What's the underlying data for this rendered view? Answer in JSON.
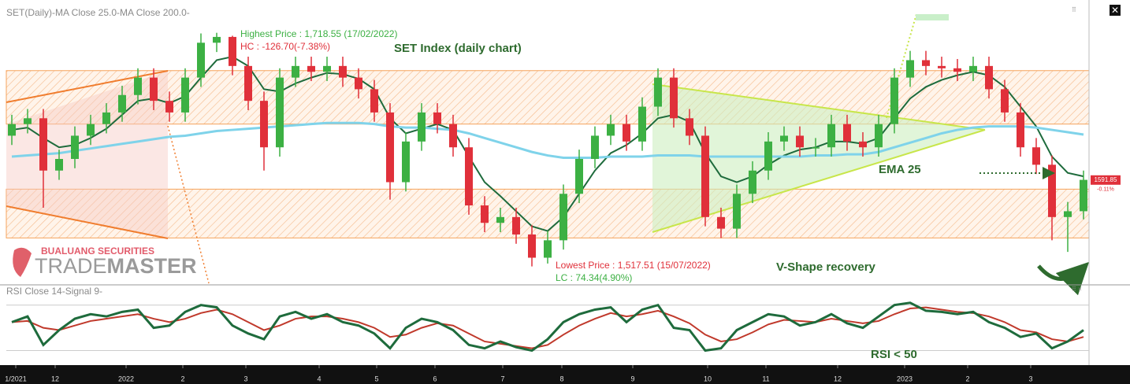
{
  "logo": {
    "company": "BUALUANG SECURITIES",
    "part1": "TRADE",
    "part2": "MASTER"
  },
  "chart_data": [
    {
      "type": "candlestick",
      "title": "SET Index (daily chart)",
      "header": "SET(Daily)-MA Close 25.0-MA Close 200.0-",
      "annotations": [
        "Highest Price : 1,718.55 (17/02/2022)",
        "HC : -126.70(-7.38%)",
        "EMA 25",
        "Lowest Price : 1,517.51 (15/07/2022)",
        "LC : 74.34(4.90%)",
        "V-Shape recovery"
      ],
      "ylim": [
        1740,
        1503
      ],
      "up_color": "#3cb043",
      "down_color": "#e0303a",
      "zones": [
        [
          1640,
          1686
        ],
        [
          1542,
          1584
        ]
      ],
      "zone_color": "#f5a35c",
      "open": [
        1630,
        1640,
        1645,
        1600,
        1610,
        1630,
        1640,
        1650,
        1665,
        1680,
        1660,
        1650,
        1680,
        1710,
        1715,
        1690,
        1660,
        1620,
        1680,
        1690,
        1685,
        1690,
        1680,
        1670,
        1650,
        1590,
        1625,
        1650,
        1640,
        1620,
        1570,
        1555,
        1560,
        1545,
        1525,
        1540,
        1580,
        1610,
        1630,
        1640,
        1625,
        1655,
        1680,
        1645,
        1630,
        1560,
        1550,
        1580,
        1600,
        1625,
        1630,
        1620,
        1620,
        1640,
        1625,
        1620,
        1640,
        1680,
        1695,
        1690,
        1688,
        1685,
        1690,
        1670,
        1650,
        1620,
        1605,
        1560,
        1565
      ],
      "high": [
        1648,
        1653,
        1653,
        1618,
        1638,
        1648,
        1658,
        1673,
        1688,
        1688,
        1668,
        1688,
        1718,
        1718.55,
        1716,
        1698,
        1668,
        1688,
        1698,
        1698,
        1698,
        1698,
        1688,
        1678,
        1658,
        1633,
        1658,
        1658,
        1648,
        1628,
        1578,
        1568,
        1568,
        1553,
        1548,
        1588,
        1618,
        1638,
        1648,
        1648,
        1663,
        1688,
        1688,
        1653,
        1638,
        1568,
        1588,
        1608,
        1633,
        1638,
        1638,
        1628,
        1648,
        1648,
        1633,
        1648,
        1688,
        1703,
        1703,
        1698,
        1696,
        1698,
        1698,
        1678,
        1658,
        1628,
        1613,
        1573,
        1600
      ],
      "low": [
        1622,
        1632,
        1568,
        1592,
        1602,
        1622,
        1632,
        1642,
        1657,
        1652,
        1642,
        1642,
        1672,
        1702,
        1682,
        1652,
        1600,
        1612,
        1672,
        1677,
        1677,
        1672,
        1662,
        1642,
        1575,
        1582,
        1617,
        1632,
        1612,
        1562,
        1547,
        1547,
        1537,
        1517.51,
        1520,
        1532,
        1572,
        1602,
        1622,
        1617,
        1617,
        1647,
        1637,
        1622,
        1552,
        1542,
        1542,
        1572,
        1592,
        1617,
        1612,
        1612,
        1612,
        1617,
        1612,
        1612,
        1632,
        1672,
        1682,
        1680,
        1677,
        1677,
        1662,
        1642,
        1612,
        1597,
        1540,
        1530,
        1558
      ],
      "close": [
        1640,
        1645,
        1600,
        1610,
        1630,
        1640,
        1650,
        1665,
        1680,
        1660,
        1650,
        1680,
        1710,
        1715,
        1690,
        1660,
        1620,
        1680,
        1690,
        1685,
        1690,
        1680,
        1670,
        1650,
        1590,
        1625,
        1650,
        1640,
        1620,
        1570,
        1555,
        1560,
        1545,
        1525,
        1540,
        1580,
        1610,
        1630,
        1640,
        1625,
        1655,
        1680,
        1645,
        1630,
        1560,
        1550,
        1580,
        1600,
        1625,
        1630,
        1620,
        1620,
        1640,
        1625,
        1620,
        1640,
        1680,
        1695,
        1690,
        1688,
        1685,
        1690,
        1670,
        1650,
        1620,
        1605,
        1560,
        1565,
        1592
      ],
      "ma_lines": [
        {
          "color": "#1e6b3c",
          "values": [
            1635,
            1637,
            1628,
            1620,
            1622,
            1628,
            1636,
            1648,
            1660,
            1662,
            1658,
            1664,
            1680,
            1695,
            1698,
            1690,
            1670,
            1668,
            1675,
            1680,
            1684,
            1683,
            1679,
            1670,
            1645,
            1632,
            1636,
            1640,
            1635,
            1612,
            1590,
            1578,
            1565,
            1552,
            1548,
            1560,
            1580,
            1600,
            1615,
            1622,
            1632,
            1645,
            1648,
            1642,
            1615,
            1595,
            1590,
            1595,
            1605,
            1613,
            1618,
            1620,
            1625,
            1625,
            1623,
            1628,
            1645,
            1662,
            1672,
            1678,
            1682,
            1685,
            1682,
            1672,
            1655,
            1638,
            1612,
            1598,
            1595
          ]
        },
        {
          "color": "#7fd3ea",
          "values": [
            1612,
            1613,
            1614,
            1615,
            1617,
            1619,
            1621,
            1623,
            1625,
            1627,
            1629,
            1630,
            1632,
            1634,
            1635,
            1636,
            1637,
            1638,
            1639,
            1640,
            1641,
            1641,
            1641,
            1640,
            1638,
            1637,
            1637,
            1636,
            1635,
            1632,
            1628,
            1624,
            1620,
            1616,
            1613,
            1611,
            1611,
            1611,
            1612,
            1612,
            1612,
            1613,
            1613,
            1613,
            1612,
            1612,
            1612,
            1612,
            1612,
            1612,
            1612,
            1613,
            1613,
            1614,
            1614,
            1616,
            1620,
            1624,
            1628,
            1632,
            1635,
            1637,
            1638,
            1638,
            1638,
            1637,
            1635,
            1633,
            1631
          ]
        }
      ],
      "last_price": 1591.85,
      "last_change_label": "-0.11%",
      "xticks": [
        {
          "value": 0.25,
          "label": "1/2021"
        },
        {
          "value": 2.75,
          "label": "12"
        },
        {
          "value": 7.25,
          "label": "2022"
        },
        {
          "value": 10.85,
          "label": "2"
        },
        {
          "value": 14.85,
          "label": "3"
        },
        {
          "value": 19.5,
          "label": "4"
        },
        {
          "value": 23.15,
          "label": "5"
        },
        {
          "value": 26.85,
          "label": "6"
        },
        {
          "value": 31.15,
          "label": "7"
        },
        {
          "value": 34.9,
          "label": "8"
        },
        {
          "value": 39.4,
          "label": "9"
        },
        {
          "value": 44.15,
          "label": "10"
        },
        {
          "value": 47.85,
          "label": "11"
        },
        {
          "value": 52.4,
          "label": "12"
        },
        {
          "value": 56.65,
          "label": "2023"
        },
        {
          "value": 60.65,
          "label": "2"
        },
        {
          "value": 64.65,
          "label": "3"
        }
      ]
    },
    {
      "type": "line",
      "title": "RSI Close 14-Signal 9-",
      "annotation": "RSI < 50",
      "ylim": [
        85,
        20
      ],
      "levels": [
        70,
        30
      ],
      "series": [
        {
          "color": "#1e6b3c",
          "values": [
            55,
            60,
            35,
            48,
            58,
            62,
            60,
            64,
            66,
            50,
            52,
            64,
            70,
            68,
            52,
            45,
            40,
            60,
            64,
            58,
            62,
            55,
            52,
            45,
            32,
            50,
            58,
            55,
            48,
            35,
            32,
            38,
            33,
            30,
            40,
            55,
            62,
            66,
            68,
            55,
            66,
            70,
            50,
            48,
            30,
            32,
            48,
            55,
            62,
            60,
            52,
            55,
            62,
            54,
            50,
            60,
            70,
            72,
            65,
            64,
            62,
            64,
            55,
            50,
            42,
            45,
            32,
            38,
            48
          ]
        },
        {
          "color": "#c0392b",
          "values": [
            55,
            56,
            50,
            48,
            52,
            56,
            58,
            60,
            62,
            58,
            55,
            58,
            63,
            66,
            62,
            55,
            48,
            52,
            58,
            60,
            60,
            58,
            55,
            50,
            42,
            44,
            50,
            54,
            52,
            45,
            38,
            36,
            34,
            32,
            35,
            44,
            52,
            58,
            63,
            60,
            62,
            65,
            60,
            54,
            44,
            38,
            40,
            46,
            53,
            57,
            56,
            55,
            58,
            56,
            54,
            56,
            62,
            67,
            68,
            66,
            64,
            63,
            60,
            55,
            48,
            46,
            40,
            38,
            42
          ]
        }
      ]
    }
  ]
}
